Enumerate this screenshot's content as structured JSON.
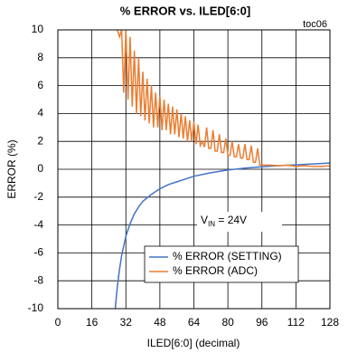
{
  "chart_data": {
    "type": "line",
    "title": "% ERROR vs. ILED[6:0]",
    "tag": "toc06",
    "x_label": "ILED[6:0] (decimal)",
    "y_label": "ERROR (%)",
    "annotation": {
      "text": "V",
      "subscript": "IN",
      "suffix": " = 24V"
    },
    "xlim": [
      0,
      128
    ],
    "xticks": [
      0,
      16,
      32,
      48,
      64,
      80,
      96,
      112,
      128
    ],
    "ylim": [
      -10,
      10
    ],
    "yticks": [
      -10,
      -8,
      -6,
      -4,
      -2,
      0,
      2,
      4,
      6,
      8,
      10
    ],
    "grid": true,
    "legend": "lower right",
    "series": [
      {
        "name": "% ERROR (SETTING)",
        "color": "#4472c4",
        "x": [
          27,
          28,
          29,
          30,
          32,
          34,
          36,
          38,
          40,
          44,
          48,
          52,
          56,
          60,
          64,
          72,
          80,
          88,
          96,
          104,
          112,
          120,
          128
        ],
        "values": [
          -10,
          -8.4,
          -7.2,
          -6.2,
          -4.8,
          -3.9,
          -3.2,
          -2.7,
          -2.3,
          -1.8,
          -1.4,
          -1.1,
          -0.9,
          -0.7,
          -0.5,
          -0.25,
          -0.05,
          0.08,
          0.18,
          0.26,
          0.32,
          0.38,
          0.45
        ]
      },
      {
        "name": "% ERROR (ADC)",
        "color": "#ed7d31",
        "x": [
          28,
          29,
          30,
          31,
          32,
          33,
          34,
          35,
          36,
          37,
          38,
          39,
          40,
          41,
          42,
          43,
          44,
          45,
          46,
          47,
          48,
          49,
          50,
          51,
          52,
          53,
          54,
          55,
          56,
          57,
          58,
          59,
          60,
          61,
          62,
          63,
          64,
          65,
          66,
          67,
          68,
          69,
          70,
          71,
          72,
          73,
          74,
          75,
          76,
          77,
          78,
          79,
          80,
          81,
          82,
          83,
          84,
          85,
          86,
          87,
          88,
          89,
          90,
          91,
          92,
          93,
          94,
          95,
          96,
          100,
          104,
          108,
          112,
          116,
          120,
          124,
          128
        ],
        "values": [
          10,
          9.5,
          10,
          5.5,
          10,
          5,
          9.5,
          4.5,
          8.5,
          4,
          8,
          3.8,
          7,
          3.5,
          6.5,
          3.3,
          6,
          3,
          5.5,
          3,
          5.3,
          2.8,
          5,
          2.8,
          4.7,
          2.5,
          4.5,
          2.5,
          4.3,
          2.3,
          4,
          2.2,
          3.8,
          2,
          3.5,
          2,
          3.4,
          1.8,
          3.2,
          1.7,
          2,
          1.6,
          3,
          1.5,
          1.5,
          2.8,
          1.3,
          1.3,
          2.5,
          1.2,
          1.2,
          2.2,
          1,
          1,
          2,
          0.9,
          0.9,
          1.8,
          0.8,
          0.8,
          1.8,
          0.7,
          0.7,
          1.7,
          0.5,
          0.5,
          1.5,
          0.3,
          0.3,
          0.3,
          0.25,
          0.3,
          0.2,
          0.25,
          0.2,
          0.2,
          0.25
        ]
      }
    ]
  }
}
